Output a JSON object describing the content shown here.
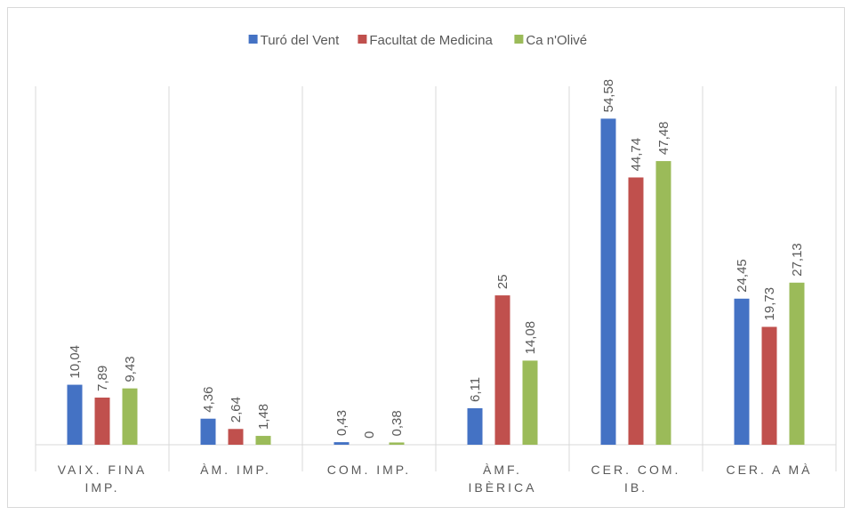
{
  "chart_data": {
    "type": "bar",
    "categories": [
      "VAIX. FINA IMP.",
      "ÀM. IMP.",
      "COM. IMP.",
      "ÀMF. IBÈRICA",
      "CER. COM. IB.",
      "CER. A MÀ"
    ],
    "series": [
      {
        "name": "Turó del Vent",
        "color": "#4472c4",
        "values": [
          10.04,
          4.36,
          0.43,
          6.11,
          54.58,
          24.45
        ],
        "value_labels": [
          "10,04",
          "4,36",
          "0,43",
          "6,11",
          "54,58",
          "24,45"
        ]
      },
      {
        "name": "Facultat de Medicina",
        "color": "#c0504d",
        "values": [
          7.89,
          2.64,
          0,
          25,
          44.74,
          19.73
        ],
        "value_labels": [
          "7,89",
          "2,64",
          "0",
          "25",
          "44,74",
          "19,73"
        ]
      },
      {
        "name": "Ca n'Olivé",
        "color": "#9bbb59",
        "values": [
          9.43,
          1.48,
          0.38,
          14.08,
          47.48,
          27.13
        ],
        "value_labels": [
          "9,43",
          "1,48",
          "0,38",
          "14,08",
          "47,48",
          "27,13"
        ]
      }
    ],
    "ylim": [
      0,
      60
    ],
    "legend": "top"
  }
}
